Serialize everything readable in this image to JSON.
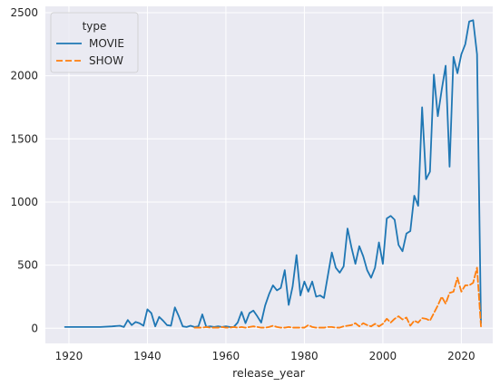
{
  "chart_data": {
    "type": "line",
    "xlabel": "release_year",
    "ylabel": "",
    "xlim": [
      1914,
      2028
    ],
    "ylim": [
      -120,
      2550
    ],
    "xticks": [
      1920,
      1940,
      1960,
      1980,
      2000,
      2020
    ],
    "yticks": [
      0,
      500,
      1000,
      1500,
      2000,
      2500
    ],
    "grid": true,
    "legend_title": "type",
    "legend_position": "top-left",
    "series": [
      {
        "name": "MOVIE",
        "color": "#1f77b4",
        "dash": "solid",
        "points": [
          [
            1919,
            10
          ],
          [
            1928,
            10
          ],
          [
            1931,
            15
          ],
          [
            1933,
            20
          ],
          [
            1934,
            10
          ],
          [
            1935,
            65
          ],
          [
            1936,
            25
          ],
          [
            1937,
            50
          ],
          [
            1938,
            40
          ],
          [
            1939,
            20
          ],
          [
            1940,
            150
          ],
          [
            1941,
            120
          ],
          [
            1942,
            15
          ],
          [
            1943,
            90
          ],
          [
            1944,
            60
          ],
          [
            1945,
            25
          ],
          [
            1946,
            20
          ],
          [
            1947,
            165
          ],
          [
            1948,
            95
          ],
          [
            1949,
            15
          ],
          [
            1950,
            10
          ],
          [
            1951,
            20
          ],
          [
            1952,
            10
          ],
          [
            1953,
            15
          ],
          [
            1954,
            110
          ],
          [
            1955,
            10
          ],
          [
            1956,
            15
          ],
          [
            1957,
            10
          ],
          [
            1958,
            15
          ],
          [
            1959,
            10
          ],
          [
            1960,
            15
          ],
          [
            1961,
            10
          ],
          [
            1962,
            10
          ],
          [
            1963,
            45
          ],
          [
            1964,
            130
          ],
          [
            1965,
            40
          ],
          [
            1966,
            120
          ],
          [
            1967,
            140
          ],
          [
            1968,
            95
          ],
          [
            1969,
            45
          ],
          [
            1970,
            180
          ],
          [
            1971,
            270
          ],
          [
            1972,
            340
          ],
          [
            1973,
            300
          ],
          [
            1974,
            320
          ],
          [
            1975,
            460
          ],
          [
            1976,
            185
          ],
          [
            1977,
            330
          ],
          [
            1978,
            580
          ],
          [
            1979,
            260
          ],
          [
            1980,
            370
          ],
          [
            1981,
            290
          ],
          [
            1982,
            370
          ],
          [
            1983,
            250
          ],
          [
            1984,
            260
          ],
          [
            1985,
            240
          ],
          [
            1986,
            420
          ],
          [
            1987,
            600
          ],
          [
            1988,
            480
          ],
          [
            1989,
            440
          ],
          [
            1990,
            490
          ],
          [
            1991,
            790
          ],
          [
            1992,
            640
          ],
          [
            1993,
            510
          ],
          [
            1994,
            650
          ],
          [
            1995,
            570
          ],
          [
            1996,
            460
          ],
          [
            1997,
            400
          ],
          [
            1998,
            480
          ],
          [
            1999,
            680
          ],
          [
            2000,
            510
          ],
          [
            2001,
            870
          ],
          [
            2002,
            890
          ],
          [
            2003,
            860
          ],
          [
            2004,
            660
          ],
          [
            2005,
            610
          ],
          [
            2006,
            750
          ],
          [
            2007,
            770
          ],
          [
            2008,
            1050
          ],
          [
            2009,
            970
          ],
          [
            2010,
            1750
          ],
          [
            2011,
            1180
          ],
          [
            2012,
            1240
          ],
          [
            2013,
            2010
          ],
          [
            2014,
            1680
          ],
          [
            2015,
            1890
          ],
          [
            2016,
            2080
          ],
          [
            2017,
            1280
          ],
          [
            2018,
            2150
          ],
          [
            2019,
            2020
          ],
          [
            2020,
            2170
          ],
          [
            2021,
            2250
          ],
          [
            2022,
            2430
          ],
          [
            2023,
            2440
          ],
          [
            2024,
            2170
          ],
          [
            2025,
            40
          ]
        ]
      },
      {
        "name": "SHOW",
        "color": "#ff7f0e",
        "dash": "dashed",
        "points": [
          [
            1952,
            5
          ],
          [
            1953,
            5
          ],
          [
            1954,
            5
          ],
          [
            1955,
            10
          ],
          [
            1956,
            5
          ],
          [
            1957,
            5
          ],
          [
            1958,
            5
          ],
          [
            1959,
            10
          ],
          [
            1960,
            5
          ],
          [
            1961,
            5
          ],
          [
            1962,
            10
          ],
          [
            1963,
            5
          ],
          [
            1964,
            10
          ],
          [
            1965,
            5
          ],
          [
            1966,
            10
          ],
          [
            1967,
            15
          ],
          [
            1968,
            10
          ],
          [
            1969,
            5
          ],
          [
            1970,
            5
          ],
          [
            1971,
            10
          ],
          [
            1972,
            20
          ],
          [
            1973,
            10
          ],
          [
            1974,
            5
          ],
          [
            1975,
            5
          ],
          [
            1976,
            10
          ],
          [
            1977,
            5
          ],
          [
            1978,
            5
          ],
          [
            1979,
            5
          ],
          [
            1980,
            5
          ],
          [
            1981,
            25
          ],
          [
            1982,
            10
          ],
          [
            1983,
            5
          ],
          [
            1984,
            5
          ],
          [
            1985,
            5
          ],
          [
            1986,
            10
          ],
          [
            1987,
            10
          ],
          [
            1988,
            5
          ],
          [
            1989,
            5
          ],
          [
            1990,
            15
          ],
          [
            1991,
            20
          ],
          [
            1992,
            25
          ],
          [
            1993,
            40
          ],
          [
            1994,
            15
          ],
          [
            1995,
            40
          ],
          [
            1996,
            25
          ],
          [
            1997,
            15
          ],
          [
            1998,
            35
          ],
          [
            1999,
            15
          ],
          [
            2000,
            35
          ],
          [
            2001,
            75
          ],
          [
            2002,
            45
          ],
          [
            2003,
            75
          ],
          [
            2004,
            95
          ],
          [
            2005,
            70
          ],
          [
            2006,
            85
          ],
          [
            2007,
            20
          ],
          [
            2008,
            60
          ],
          [
            2009,
            45
          ],
          [
            2010,
            80
          ],
          [
            2011,
            75
          ],
          [
            2012,
            60
          ],
          [
            2013,
            120
          ],
          [
            2014,
            180
          ],
          [
            2015,
            250
          ],
          [
            2016,
            195
          ],
          [
            2017,
            280
          ],
          [
            2018,
            290
          ],
          [
            2019,
            400
          ],
          [
            2020,
            290
          ],
          [
            2021,
            340
          ],
          [
            2022,
            340
          ],
          [
            2023,
            360
          ],
          [
            2024,
            480
          ],
          [
            2025,
            15
          ]
        ]
      }
    ]
  }
}
